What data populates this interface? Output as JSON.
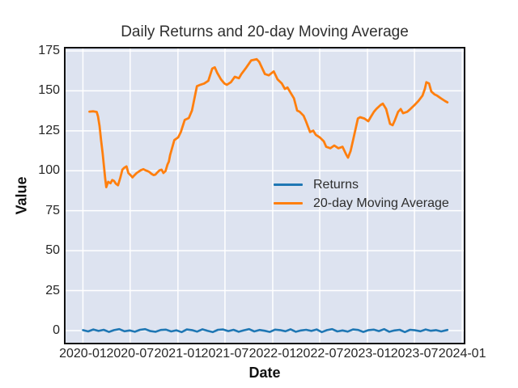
{
  "chart_data": {
    "type": "line",
    "title": "Daily Returns and 20-day Moving Average",
    "xlabel": "Date",
    "ylabel": "Value",
    "grid": true,
    "legend_position": "center right",
    "plot_bg_color": "#dde3f0",
    "grid_color": "#ffffff",
    "border_color": "#111111",
    "x_unit": "days since 2020-01-01",
    "xlim": [
      -70,
      1470
    ],
    "ylim": [
      -8.1,
      177
    ],
    "y_ticks": [
      0,
      25,
      50,
      75,
      100,
      125,
      150,
      175
    ],
    "x_ticks": [
      {
        "label": "2020-01",
        "d": 0
      },
      {
        "label": "2020-07",
        "d": 182
      },
      {
        "label": "2021-01",
        "d": 366
      },
      {
        "label": "2021-07",
        "d": 547
      },
      {
        "label": "2022-01",
        "d": 731
      },
      {
        "label": "2022-07",
        "d": 912
      },
      {
        "label": "2023-01",
        "d": 1096
      },
      {
        "label": "2023-07",
        "d": 1277
      },
      {
        "label": "2024-01",
        "d": 1461
      }
    ],
    "series": [
      {
        "name": "Returns",
        "color": "#1f77b4",
        "line_width": 2.6,
        "points": [
          [
            0,
            0.3
          ],
          [
            20,
            -0.5
          ],
          [
            40,
            0.7
          ],
          [
            60,
            -0.2
          ],
          [
            80,
            0.5
          ],
          [
            100,
            -0.8
          ],
          [
            120,
            0.3
          ],
          [
            140,
            0.9
          ],
          [
            160,
            -0.4
          ],
          [
            180,
            0.1
          ],
          [
            200,
            -0.7
          ],
          [
            220,
            0.5
          ],
          [
            240,
            0.9
          ],
          [
            260,
            -0.3
          ],
          [
            280,
            -0.7
          ],
          [
            300,
            0.4
          ],
          [
            320,
            0.6
          ],
          [
            340,
            -0.5
          ],
          [
            360,
            0.2
          ],
          [
            380,
            -0.9
          ],
          [
            400,
            0.7
          ],
          [
            420,
            0.3
          ],
          [
            440,
            -0.6
          ],
          [
            460,
            0.8
          ],
          [
            480,
            -0.1
          ],
          [
            500,
            -0.9
          ],
          [
            520,
            0.5
          ],
          [
            540,
            0.7
          ],
          [
            560,
            -0.3
          ],
          [
            580,
            0.5
          ],
          [
            600,
            -0.7
          ],
          [
            620,
            0.2
          ],
          [
            640,
            0.9
          ],
          [
            660,
            -0.5
          ],
          [
            680,
            0.4
          ],
          [
            700,
            -0.1
          ],
          [
            720,
            -0.8
          ],
          [
            740,
            0.6
          ],
          [
            760,
            0.3
          ],
          [
            780,
            -0.4
          ],
          [
            800,
            0.8
          ],
          [
            820,
            -0.7
          ],
          [
            840,
            0.1
          ],
          [
            860,
            0.5
          ],
          [
            880,
            -0.2
          ],
          [
            900,
            0.7
          ],
          [
            920,
            -0.9
          ],
          [
            940,
            0.3
          ],
          [
            960,
            0.9
          ],
          [
            980,
            -0.5
          ],
          [
            1000,
            0.1
          ],
          [
            1020,
            -0.6
          ],
          [
            1040,
            0.7
          ],
          [
            1060,
            0.4
          ],
          [
            1080,
            -0.8
          ],
          [
            1100,
            0.3
          ],
          [
            1120,
            0.6
          ],
          [
            1140,
            -0.3
          ],
          [
            1160,
            0.9
          ],
          [
            1180,
            -0.7
          ],
          [
            1200,
            0.1
          ],
          [
            1220,
            0.5
          ],
          [
            1240,
            -0.9
          ],
          [
            1260,
            0.5
          ],
          [
            1280,
            0.2
          ],
          [
            1300,
            -0.4
          ],
          [
            1320,
            0.7
          ],
          [
            1340,
            -0.1
          ],
          [
            1360,
            0.3
          ],
          [
            1380,
            -0.5
          ],
          [
            1404,
            0.4
          ]
        ]
      },
      {
        "name": "20-day Moving Average",
        "color": "#ff7f0e",
        "line_width": 2.8,
        "points": [
          [
            25,
            137
          ],
          [
            40,
            137.2
          ],
          [
            53,
            136.8
          ],
          [
            58,
            134
          ],
          [
            64,
            128
          ],
          [
            70,
            119
          ],
          [
            76,
            111
          ],
          [
            82,
            101
          ],
          [
            86,
            95
          ],
          [
            90,
            89.7
          ],
          [
            97,
            93.1
          ],
          [
            106,
            92.2
          ],
          [
            113,
            94.2
          ],
          [
            120,
            93.6
          ],
          [
            127,
            91.9
          ],
          [
            135,
            90.9
          ],
          [
            144,
            95.6
          ],
          [
            152,
            100.7
          ],
          [
            160,
            102
          ],
          [
            168,
            102.7
          ],
          [
            175,
            98.6
          ],
          [
            183,
            97.3
          ],
          [
            191,
            95.9
          ],
          [
            199,
            97.3
          ],
          [
            207,
            98.6
          ],
          [
            214,
            99.3
          ],
          [
            222,
            100.3
          ],
          [
            233,
            101
          ],
          [
            241,
            100.3
          ],
          [
            248,
            99.8
          ],
          [
            255,
            99.3
          ],
          [
            264,
            98.1
          ],
          [
            272,
            97.3
          ],
          [
            279,
            97.6
          ],
          [
            287,
            99
          ],
          [
            295,
            100.3
          ],
          [
            303,
            100.7
          ],
          [
            310,
            98.6
          ],
          [
            318,
            99.8
          ],
          [
            326,
            104
          ],
          [
            331,
            105.7
          ],
          [
            336,
            109.9
          ],
          [
            352,
            119.2
          ],
          [
            367,
            120.9
          ],
          [
            377,
            124.2
          ],
          [
            392,
            131.8
          ],
          [
            408,
            133
          ],
          [
            420,
            137.7
          ],
          [
            439,
            152.9
          ],
          [
            452,
            153.8
          ],
          [
            467,
            154.6
          ],
          [
            483,
            156.3
          ],
          [
            498,
            163.9
          ],
          [
            508,
            164.7
          ],
          [
            517,
            161.3
          ],
          [
            532,
            157.1
          ],
          [
            545,
            154.6
          ],
          [
            554,
            153.8
          ],
          [
            570,
            155.4
          ],
          [
            585,
            158.8
          ],
          [
            601,
            157.9
          ],
          [
            610,
            160.4
          ],
          [
            626,
            163.9
          ],
          [
            648,
            169
          ],
          [
            669,
            169.8
          ],
          [
            679,
            168.1
          ],
          [
            701,
            160.5
          ],
          [
            716,
            159.7
          ],
          [
            735,
            162.2
          ],
          [
            750,
            157.1
          ],
          [
            766,
            154.6
          ],
          [
            778,
            151.2
          ],
          [
            788,
            152.1
          ],
          [
            797,
            149.6
          ],
          [
            813,
            145.3
          ],
          [
            825,
            137.7
          ],
          [
            835,
            136.9
          ],
          [
            850,
            134.4
          ],
          [
            859,
            131
          ],
          [
            875,
            124.2
          ],
          [
            887,
            125.1
          ],
          [
            897,
            122.5
          ],
          [
            912,
            120.9
          ],
          [
            928,
            118.4
          ],
          [
            937,
            115
          ],
          [
            953,
            114.1
          ],
          [
            968,
            115.8
          ],
          [
            984,
            114.1
          ],
          [
            1000,
            115
          ],
          [
            1015,
            109.9
          ],
          [
            1021,
            108.2
          ],
          [
            1031,
            112.4
          ],
          [
            1043,
            120.9
          ],
          [
            1059,
            132.7
          ],
          [
            1068,
            133.5
          ],
          [
            1084,
            132.7
          ],
          [
            1099,
            131
          ],
          [
            1108,
            133.5
          ],
          [
            1121,
            136.9
          ],
          [
            1130,
            138.6
          ],
          [
            1146,
            141.1
          ],
          [
            1155,
            142
          ],
          [
            1168,
            138.6
          ],
          [
            1183,
            129.3
          ],
          [
            1193,
            128.5
          ],
          [
            1202,
            131.8
          ],
          [
            1214,
            136.9
          ],
          [
            1224,
            138.6
          ],
          [
            1233,
            136
          ],
          [
            1249,
            136.9
          ],
          [
            1261,
            138.6
          ],
          [
            1277,
            141.1
          ],
          [
            1292,
            143.6
          ],
          [
            1308,
            147
          ],
          [
            1317,
            151.2
          ],
          [
            1323,
            155.4
          ],
          [
            1333,
            154.6
          ],
          [
            1342,
            149.6
          ],
          [
            1354,
            147.8
          ],
          [
            1364,
            147
          ],
          [
            1379,
            145.3
          ],
          [
            1395,
            143.6
          ],
          [
            1404,
            142.8
          ]
        ]
      }
    ]
  }
}
